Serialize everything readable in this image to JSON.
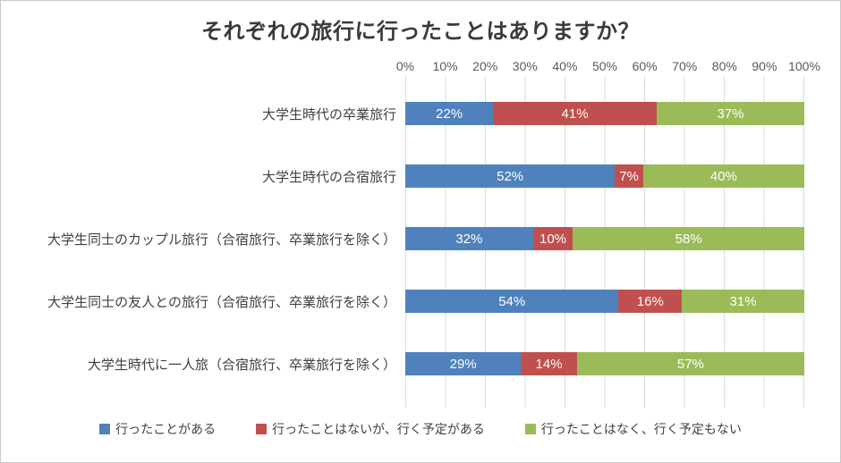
{
  "chart_data": {
    "type": "bar",
    "orientation": "horizontal",
    "stacked": true,
    "title": "それぞれの旅行に行ったことはありますか？",
    "categories": [
      "大学生時代の卒業旅行",
      "大学生時代の合宿旅行",
      "大学生同士のカップル旅行（合宿旅行、卒業旅行を除く）",
      "大学生同士の友人との旅行（合宿旅行、卒業旅行を除く）",
      "大学生時代に一人旅（合宿旅行、卒業旅行を除く）"
    ],
    "series": [
      {
        "name": "行ったことがある",
        "color": "#4F81BD",
        "values": [
          22,
          52,
          32,
          54,
          29
        ]
      },
      {
        "name": "行ったことはないが、行く予定がある",
        "color": "#C0504D",
        "values": [
          41,
          7,
          10,
          16,
          14
        ]
      },
      {
        "name": "行ったことはなく、行く予定もない",
        "color": "#9BBB59",
        "values": [
          37,
          40,
          58,
          31,
          57
        ]
      }
    ],
    "value_label_suffix": "%",
    "x_ticks": [
      "0%",
      "10%",
      "20%",
      "30%",
      "40%",
      "50%",
      "60%",
      "70%",
      "80%",
      "90%",
      "100%"
    ],
    "xlim": [
      0,
      100
    ],
    "grid": true,
    "legend_position": "bottom",
    "colors": {
      "grid": "#d9d9d9",
      "title_text": "#3a3a3a",
      "axis_text": "#595959",
      "category_text": "#404040",
      "value_text": "#ffffff",
      "border": "#c9c9c9"
    }
  }
}
